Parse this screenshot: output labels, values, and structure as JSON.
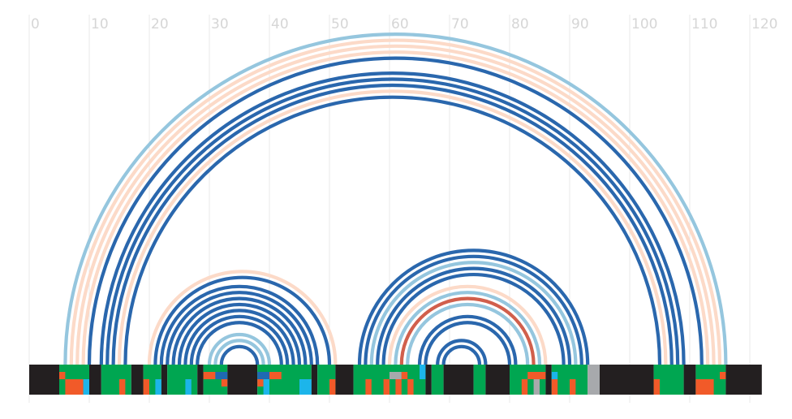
{
  "chart_data": {
    "type": "arc-diagram",
    "x_axis": {
      "range": [
        0,
        120
      ],
      "ticks": [
        0,
        10,
        20,
        30,
        40,
        50,
        60,
        70,
        80,
        90,
        100,
        110,
        120
      ],
      "tick_labels": [
        "0",
        "10",
        "20",
        "30",
        "40",
        "50",
        "60",
        "70",
        "80",
        "90",
        "100",
        "110",
        "120"
      ],
      "grid": true
    },
    "colors": {
      "blue": "#2a67ad",
      "light_blue": "#95c6de",
      "peach": "#fcdac8",
      "red": "#d15f4c",
      "black": "#231f20",
      "green": "#00a651",
      "orange": "#f15a29",
      "cyan": "#1cb5ea",
      "dark_blue": "#1f6ab3",
      "gray": "#a7a9ac",
      "grid": "#e8e8e8",
      "tick_label": "#d6d6d6"
    },
    "arcs": [
      {
        "start": 6,
        "end": 116,
        "color": "light_blue"
      },
      {
        "start": 7,
        "end": 115,
        "color": "peach"
      },
      {
        "start": 8,
        "end": 114,
        "color": "peach"
      },
      {
        "start": 9,
        "end": 113,
        "color": "peach"
      },
      {
        "start": 10,
        "end": 112,
        "color": "blue"
      },
      {
        "start": 12,
        "end": 109,
        "color": "blue"
      },
      {
        "start": 13,
        "end": 108,
        "color": "blue"
      },
      {
        "start": 14,
        "end": 107,
        "color": "blue"
      },
      {
        "start": 15,
        "end": 106,
        "color": "peach"
      },
      {
        "start": 16,
        "end": 105,
        "color": "blue"
      },
      {
        "start": 20,
        "end": 51,
        "color": "peach"
      },
      {
        "start": 21,
        "end": 50,
        "color": "blue"
      },
      {
        "start": 22,
        "end": 48,
        "color": "blue"
      },
      {
        "start": 23,
        "end": 47,
        "color": "blue"
      },
      {
        "start": 24,
        "end": 46,
        "color": "blue"
      },
      {
        "start": 25,
        "end": 45,
        "color": "blue"
      },
      {
        "start": 26,
        "end": 44,
        "color": "blue"
      },
      {
        "start": 27,
        "end": 43,
        "color": "blue"
      },
      {
        "start": 28,
        "end": 42,
        "color": "blue"
      },
      {
        "start": 30,
        "end": 40,
        "color": "light_blue"
      },
      {
        "start": 31,
        "end": 39,
        "color": "light_blue"
      },
      {
        "start": 32,
        "end": 38,
        "color": "blue"
      },
      {
        "start": 55,
        "end": 93,
        "color": "blue"
      },
      {
        "start": 56,
        "end": 92,
        "color": "blue"
      },
      {
        "start": 57,
        "end": 91,
        "color": "light_blue"
      },
      {
        "start": 58,
        "end": 90,
        "color": "blue"
      },
      {
        "start": 59,
        "end": 89,
        "color": "blue"
      },
      {
        "start": 60,
        "end": 86,
        "color": "peach"
      },
      {
        "start": 61,
        "end": 85,
        "color": "light_blue"
      },
      {
        "start": 62,
        "end": 84,
        "color": "red"
      },
      {
        "start": 63,
        "end": 83,
        "color": "light_blue"
      },
      {
        "start": 65,
        "end": 81,
        "color": "blue"
      },
      {
        "start": 66,
        "end": 80,
        "color": "blue"
      },
      {
        "start": 68,
        "end": 76,
        "color": "blue"
      },
      {
        "start": 69,
        "end": 75,
        "color": "blue"
      }
    ],
    "track": {
      "start": 0,
      "end": 122,
      "segments": [
        {
          "from": 0,
          "to": 5,
          "color": "black"
        },
        {
          "from": 5,
          "to": 10,
          "color": "green"
        },
        {
          "from": 10,
          "to": 12,
          "color": "black"
        },
        {
          "from": 12,
          "to": 17,
          "color": "green"
        },
        {
          "from": 17,
          "to": 19,
          "color": "black"
        },
        {
          "from": 19,
          "to": 22,
          "color": "green"
        },
        {
          "from": 22,
          "to": 23,
          "color": "black"
        },
        {
          "from": 23,
          "to": 28,
          "color": "green"
        },
        {
          "from": 28,
          "to": 29,
          "color": "black"
        },
        {
          "from": 29,
          "to": 33,
          "color": "green"
        },
        {
          "from": 33,
          "to": 38,
          "color": "black"
        },
        {
          "from": 38,
          "to": 47,
          "color": "green"
        },
        {
          "from": 47,
          "to": 48,
          "color": "black"
        },
        {
          "from": 48,
          "to": 51,
          "color": "green"
        },
        {
          "from": 51,
          "to": 54,
          "color": "black"
        },
        {
          "from": 54,
          "to": 66,
          "color": "green"
        },
        {
          "from": 66,
          "to": 67,
          "color": "black"
        },
        {
          "from": 67,
          "to": 69,
          "color": "green"
        },
        {
          "from": 69,
          "to": 74,
          "color": "black"
        },
        {
          "from": 74,
          "to": 76,
          "color": "green"
        },
        {
          "from": 76,
          "to": 80,
          "color": "black"
        },
        {
          "from": 80,
          "to": 86,
          "color": "green"
        },
        {
          "from": 86,
          "to": 87,
          "color": "black"
        },
        {
          "from": 87,
          "to": 93,
          "color": "green"
        },
        {
          "from": 93,
          "to": 95,
          "color": "gray"
        },
        {
          "from": 95,
          "to": 104,
          "color": "black"
        },
        {
          "from": 104,
          "to": 109,
          "color": "green"
        },
        {
          "from": 109,
          "to": 111,
          "color": "black"
        },
        {
          "from": 111,
          "to": 116,
          "color": "green"
        },
        {
          "from": 116,
          "to": 122,
          "color": "black"
        }
      ],
      "marks": [
        {
          "from": 5,
          "to": 6,
          "row": "top",
          "color": "orange"
        },
        {
          "from": 6,
          "to": 9,
          "row": "bottom",
          "color": "orange"
        },
        {
          "from": 9,
          "to": 10,
          "row": "bottom",
          "color": "cyan"
        },
        {
          "from": 15,
          "to": 16,
          "row": "bottom",
          "color": "orange"
        },
        {
          "from": 19,
          "to": 20,
          "row": "bottom",
          "color": "orange"
        },
        {
          "from": 21,
          "to": 22,
          "row": "bottom",
          "color": "cyan"
        },
        {
          "from": 26,
          "to": 27,
          "row": "bottom",
          "color": "cyan"
        },
        {
          "from": 29,
          "to": 31,
          "row": "top",
          "color": "orange"
        },
        {
          "from": 31,
          "to": 33,
          "row": "top",
          "color": "dark_blue"
        },
        {
          "from": 32,
          "to": 33,
          "row": "mid",
          "color": "orange"
        },
        {
          "from": 38,
          "to": 40,
          "row": "top",
          "color": "dark_blue"
        },
        {
          "from": 40,
          "to": 42,
          "row": "top",
          "color": "orange"
        },
        {
          "from": 38,
          "to": 39,
          "row": "mid",
          "color": "orange"
        },
        {
          "from": 39,
          "to": 40,
          "row": "bottom",
          "color": "cyan"
        },
        {
          "from": 45,
          "to": 47,
          "row": "bottom",
          "color": "cyan"
        },
        {
          "from": 50,
          "to": 51,
          "row": "bottom",
          "color": "orange"
        },
        {
          "from": 56,
          "to": 57,
          "row": "bottom",
          "color": "orange"
        },
        {
          "from": 59,
          "to": 60,
          "row": "bottom",
          "color": "orange"
        },
        {
          "from": 60,
          "to": 62,
          "row": "top",
          "color": "gray"
        },
        {
          "from": 62,
          "to": 63,
          "row": "top",
          "color": "orange"
        },
        {
          "from": 61,
          "to": 62,
          "row": "bottom",
          "color": "orange"
        },
        {
          "from": 63,
          "to": 64,
          "row": "bottom",
          "color": "orange"
        },
        {
          "from": 65,
          "to": 66,
          "row": "topcyan",
          "color": "cyan"
        },
        {
          "from": 82,
          "to": 83,
          "row": "bottom",
          "color": "orange"
        },
        {
          "from": 83,
          "to": 86,
          "row": "top",
          "color": "orange"
        },
        {
          "from": 84,
          "to": 85,
          "row": "bottom",
          "color": "gray"
        },
        {
          "from": 87,
          "to": 88,
          "row": "top",
          "color": "cyan"
        },
        {
          "from": 87,
          "to": 88,
          "row": "bottom",
          "color": "orange"
        },
        {
          "from": 90,
          "to": 91,
          "row": "bottom",
          "color": "orange"
        },
        {
          "from": 93,
          "to": 95,
          "row": "bottom",
          "color": "gray"
        },
        {
          "from": 104,
          "to": 105,
          "row": "bottom",
          "color": "orange"
        },
        {
          "from": 111,
          "to": 114,
          "row": "bottom",
          "color": "orange"
        },
        {
          "from": 115,
          "to": 116,
          "row": "top",
          "color": "orange"
        }
      ]
    }
  }
}
